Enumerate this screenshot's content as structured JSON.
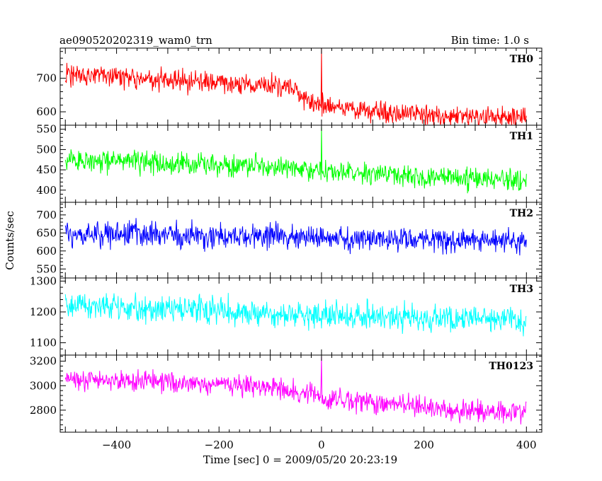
{
  "header": {
    "title": "ae090520202319_wam0_trn",
    "bin_time": "Bin time: 1.0 s"
  },
  "axes": {
    "xlabel": "Time [sec] 0 = 2009/05/20 20:23:19",
    "ylabel": "Counts/sec"
  },
  "chart_data": {
    "type": "line",
    "title": "ae090520202319_wam0_trn",
    "subtitle": "Bin time: 1.0 s",
    "xlabel": "Time [sec] 0 = 2009/05/20 20:23:19",
    "ylabel": "Counts/sec",
    "xlim": [
      -510,
      430
    ],
    "x_ticks": [
      -400,
      -200,
      0,
      200,
      400
    ],
    "x_range": [
      -500,
      400
    ],
    "bin_time": 1.0,
    "grid": false,
    "panels": [
      {
        "name": "TH0",
        "color": "#ff0000",
        "ylim": [
          560,
          790
        ],
        "y_ticks": [
          600,
          700
        ],
        "level_profile": [
          [
            -500,
            710
          ],
          [
            -300,
            695
          ],
          [
            -100,
            678
          ],
          [
            -50,
            665
          ],
          [
            -20,
            625
          ],
          [
            50,
            610
          ],
          [
            150,
            600
          ],
          [
            250,
            588
          ],
          [
            400,
            585
          ]
        ],
        "noise_amplitude": 28,
        "spike": {
          "x": 0,
          "y": 790
        }
      },
      {
        "name": "TH1",
        "color": "#00ff00",
        "ylim": [
          370,
          560
        ],
        "y_ticks": [
          400,
          450,
          500,
          550
        ],
        "level_profile": [
          [
            -500,
            475
          ],
          [
            -300,
            465
          ],
          [
            -100,
            458
          ],
          [
            0,
            448
          ],
          [
            200,
            432
          ],
          [
            400,
            425
          ]
        ],
        "noise_amplitude": 25,
        "spike": {
          "x": 0,
          "y": 555
        }
      },
      {
        "name": "TH2",
        "color": "#0000ff",
        "ylim": [
          525,
          735
        ],
        "y_ticks": [
          550,
          600,
          650,
          700
        ],
        "level_profile": [
          [
            -500,
            648
          ],
          [
            -300,
            645
          ],
          [
            -100,
            640
          ],
          [
            100,
            632
          ],
          [
            400,
            628
          ]
        ],
        "noise_amplitude": 30,
        "spike": null
      },
      {
        "name": "TH3",
        "color": "#00ffff",
        "ylim": [
          1060,
          1310
        ],
        "y_ticks": [
          1100,
          1200,
          1300
        ],
        "level_profile": [
          [
            -500,
            1225
          ],
          [
            -300,
            1208
          ],
          [
            -100,
            1195
          ],
          [
            100,
            1183
          ],
          [
            400,
            1172
          ]
        ],
        "noise_amplitude": 40,
        "spike": null
      },
      {
        "name": "TH0123",
        "color": "#ff00ff",
        "ylim": [
          2620,
          3250
        ],
        "y_ticks": [
          2800,
          3000,
          3200
        ],
        "level_profile": [
          [
            -500,
            3060
          ],
          [
            -300,
            3030
          ],
          [
            -100,
            2990
          ],
          [
            -30,
            2950
          ],
          [
            20,
            2890
          ],
          [
            150,
            2850
          ],
          [
            250,
            2800
          ],
          [
            400,
            2790
          ]
        ],
        "noise_amplitude": 75,
        "spike": {
          "x": 0,
          "y": 3240
        }
      }
    ]
  }
}
